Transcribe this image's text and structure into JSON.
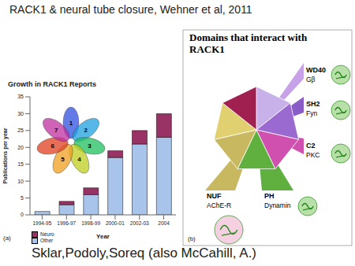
{
  "title": "RACK1 & neural tube closure, Wehner et al, 2011",
  "footer": "Sklar,Podoly,Soreq (also McCahill, A.)",
  "panel_labels": [
    "(a)",
    "(b)"
  ],
  "structure_labels": [
    "1",
    "2",
    "3",
    "4",
    "5",
    "6",
    "7"
  ],
  "chart_data": {
    "type": "bar",
    "title": "Growth in RACK1 Reports",
    "x_label": "Year",
    "y_label": "Publications per year",
    "categories": [
      "1994-95",
      "1996-97",
      "1998-99",
      "2000-01",
      "2002-03",
      "2004"
    ],
    "series": [
      {
        "name": "Neuro",
        "color": "#993366",
        "values": [
          0,
          1,
          2,
          2,
          4,
          7
        ]
      },
      {
        "name": "Other",
        "color": "#a9c4eb",
        "values": [
          1,
          3,
          6,
          17,
          21,
          23
        ]
      }
    ],
    "ylim": [
      0,
      35
    ],
    "yticks": [
      0,
      5,
      10,
      15,
      20,
      25,
      30,
      35
    ],
    "stacked": true,
    "legend": "lower left"
  },
  "diagram": {
    "title": "Domains that interact with RACK1",
    "domains": [
      {
        "name": "WD40",
        "partner": "Gβ"
      },
      {
        "name": "SH2",
        "partner": "Fyn"
      },
      {
        "name": "C2",
        "partner": "PKC"
      },
      {
        "name": "PH",
        "partner": "Dynamin"
      },
      {
        "name": "NUF",
        "partner": "AChE-R"
      }
    ]
  }
}
